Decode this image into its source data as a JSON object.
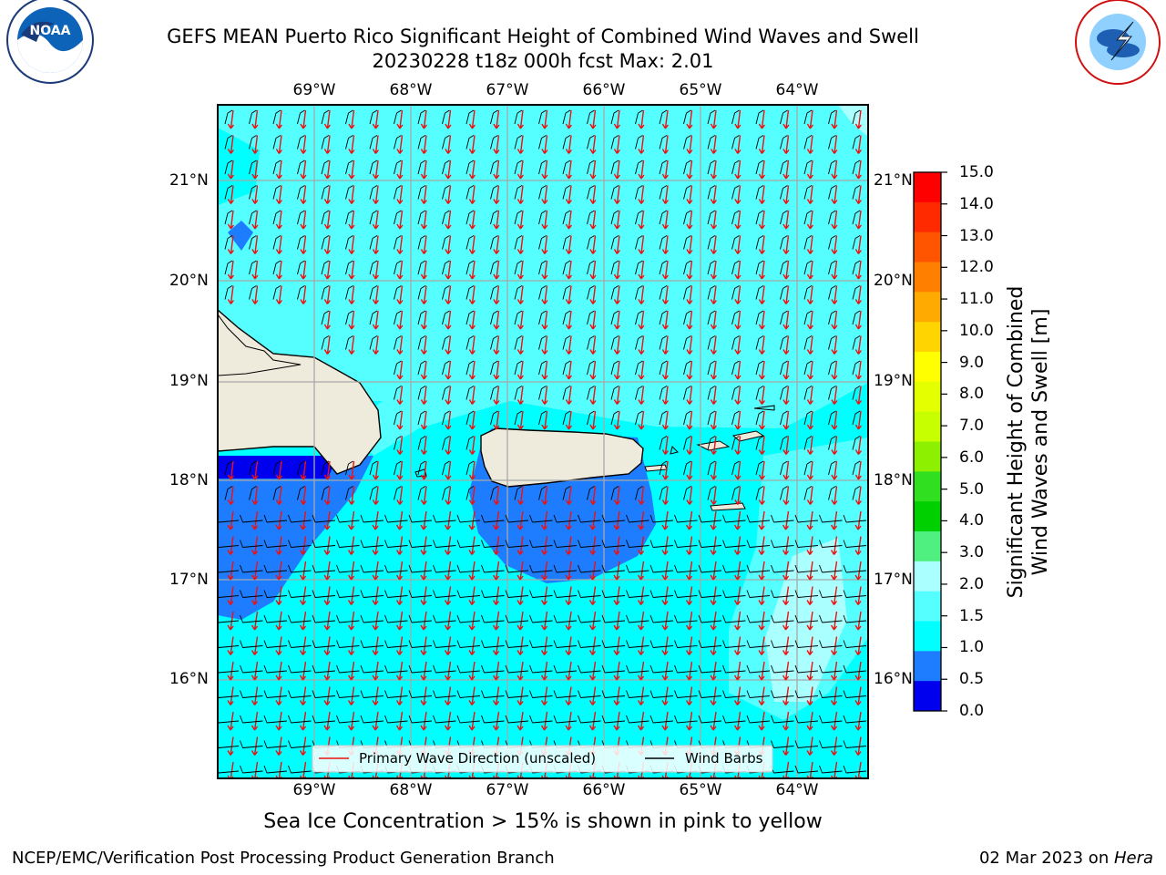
{
  "header": {
    "title_line1": "GEFS MEAN Puerto Rico Significant Height of Combined Wind Waves and Swell",
    "title_line2": "20230228 t18z 000h fcst   Max: 2.01",
    "logo_left_text": "NOAA",
    "logo_left_ring_text": "NATIONAL OCEANIC AND ATMOSPHERIC ADMINISTRATION · U.S. DEPARTMENT OF COMMERCE",
    "logo_right_ring_text": "NATIONAL WEATHER SERVICE"
  },
  "map": {
    "lon_labels": [
      "69°W",
      "68°W",
      "67°W",
      "66°W",
      "65°W",
      "64°W"
    ],
    "lat_labels": [
      "21°N",
      "20°N",
      "19°N",
      "18°N",
      "17°N",
      "16°N"
    ],
    "legend": {
      "primary_wave": "Primary Wave Direction (unscaled)",
      "wind_barbs": "Wind Barbs"
    },
    "colors": {
      "ocean_1_0_1_5": "#00ffff",
      "ocean_1_5_2_0": "#55ffff",
      "ocean_2_0_3_0": "#aaffff",
      "ocean_0_5_1_0": "#1e7cff",
      "ocean_0_0_0_5": "#0000ee",
      "land": "#eeebdc",
      "wave_arrow": "#ee1111",
      "wind_barb": "#000000"
    }
  },
  "colorbar": {
    "title_line1": "Significant Height of Combined",
    "title_line2": "Wind Waves and Swell [m]",
    "ticks": [
      "15.0",
      "14.0",
      "13.0",
      "12.0",
      "11.0",
      "10.0",
      "9.0",
      "8.0",
      "7.0",
      "6.0",
      "5.0",
      "4.0",
      "3.0",
      "2.0",
      "1.5",
      "1.0",
      "0.5",
      "0.0"
    ],
    "bands_top_to_bottom": [
      "#ff0000",
      "#ff2a00",
      "#ff5500",
      "#ff8000",
      "#ffaa00",
      "#ffd400",
      "#ffff00",
      "#e4ff00",
      "#c8ff00",
      "#8cf000",
      "#30e020",
      "#00d000",
      "#50f080",
      "#aaffff",
      "#55ffff",
      "#00ffff",
      "#1e7cff",
      "#0000ee"
    ]
  },
  "footer": {
    "note": "Sea Ice Concentration > 15% is shown in pink to yellow",
    "left": "NCEP/EMC/Verification Post Processing Product Generation Branch",
    "date": "02 Mar 2023 on ",
    "machine": "Hera"
  }
}
